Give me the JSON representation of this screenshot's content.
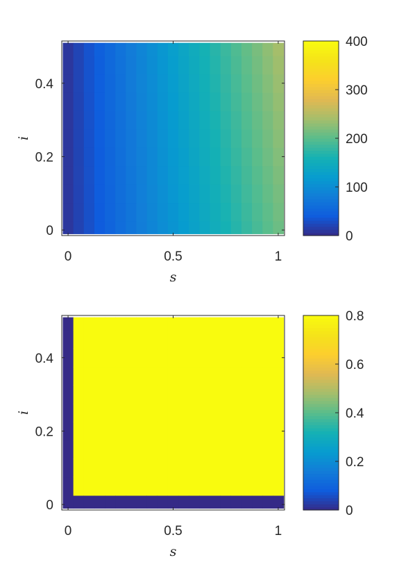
{
  "chart_data": [
    {
      "type": "heatmap",
      "xlabel": "s",
      "ylabel": "i",
      "xlim": [
        -0.03,
        1.03
      ],
      "ylim": [
        -0.015,
        0.515
      ],
      "x_ticks": [
        "0",
        "0.5",
        "1"
      ],
      "y_ticks": [
        "0",
        "0.2",
        "0.4"
      ],
      "x_tick_values": [
        0,
        0.5,
        1
      ],
      "y_tick_values": [
        0,
        0.2,
        0.4
      ],
      "x_centers": [
        0,
        0.05,
        0.1,
        0.15,
        0.2,
        0.25,
        0.3,
        0.35,
        0.4,
        0.45,
        0.5,
        0.55,
        0.6,
        0.65,
        0.7,
        0.75,
        0.8,
        0.85,
        0.9,
        0.95,
        1.0
      ],
      "y_centers": [
        0,
        0.05,
        0.1,
        0.15,
        0.2,
        0.25,
        0.3,
        0.35,
        0.4,
        0.45,
        0.5
      ],
      "value_model": "value = 10 + 200*s + 60*i*s",
      "colorbar": {
        "min": 0,
        "max": 400,
        "ticks": [
          "0",
          "100",
          "200",
          "300",
          "400"
        ],
        "tick_values": [
          0,
          100,
          200,
          300,
          400
        ],
        "colormap": "parula"
      }
    },
    {
      "type": "heatmap",
      "xlabel": "s",
      "ylabel": "i",
      "xlim": [
        -0.03,
        1.03
      ],
      "ylim": [
        -0.015,
        0.515
      ],
      "x_ticks": [
        "0",
        "0.5",
        "1"
      ],
      "y_ticks": [
        "0",
        "0.2",
        "0.4"
      ],
      "x_tick_values": [
        0,
        0.5,
        1
      ],
      "y_tick_values": [
        0,
        0.2,
        0.4
      ],
      "x_centers": [
        0,
        0.05,
        0.1,
        0.15,
        0.2,
        0.25,
        0.3,
        0.35,
        0.4,
        0.45,
        0.5,
        0.55,
        0.6,
        0.65,
        0.7,
        0.75,
        0.8,
        0.85,
        0.9,
        0.95,
        1.0
      ],
      "y_centers": [
        0,
        0.05,
        0.1,
        0.15,
        0.2,
        0.25,
        0.3,
        0.35,
        0.4,
        0.45,
        0.5
      ],
      "value_model": "value = 0 where s = 0 or i = 0, otherwise 0.8",
      "colorbar": {
        "min": 0,
        "max": 0.8,
        "ticks": [
          "0",
          "0.2",
          "0.4",
          "0.6",
          "0.8"
        ],
        "tick_values": [
          0,
          0.2,
          0.4,
          0.6,
          0.8
        ],
        "colormap": "parula"
      }
    }
  ]
}
